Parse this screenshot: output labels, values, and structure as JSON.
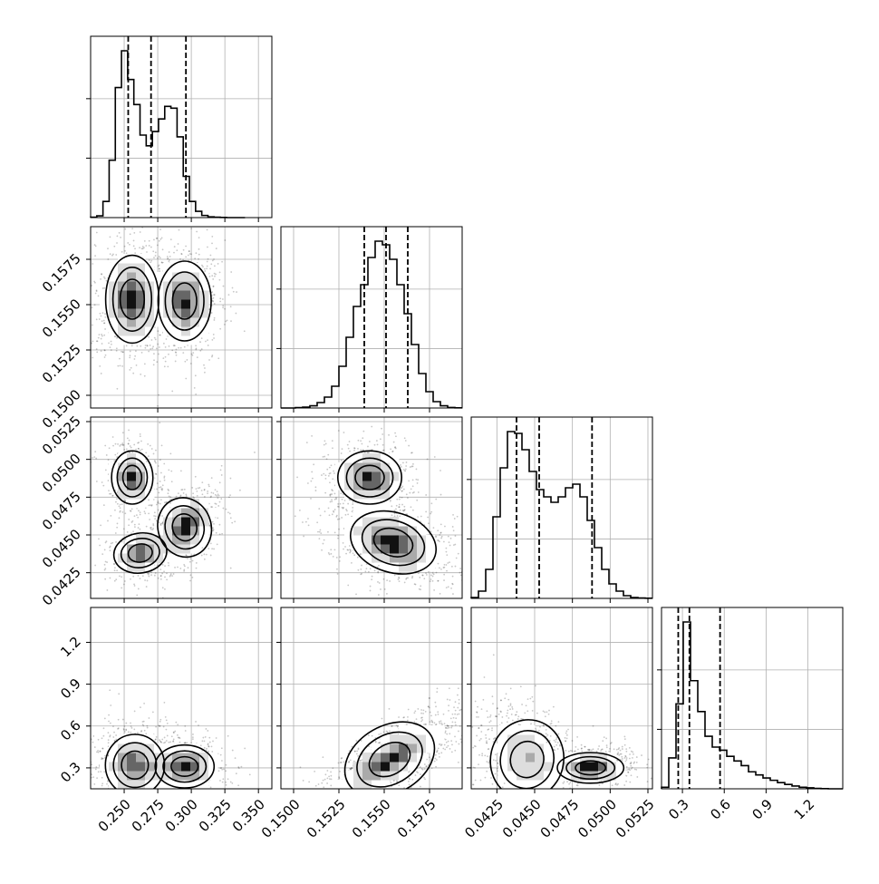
{
  "chart_data": {
    "type": "corner",
    "description_of_params": "4 parameters, 1D marginal histograms on diagonal, 2D density/contours below",
    "grid": true,
    "line_color": "#000000",
    "point_color": "#000000",
    "density_colors": [
      "#ffffff",
      "#dddddd",
      "#aaaaaa",
      "#666666",
      "#111111"
    ],
    "params": [
      {
        "range": [
          0.225,
          0.36
        ],
        "ticks": [
          0.25,
          0.275,
          0.3,
          0.325,
          0.35
        ],
        "tick_labels": [
          "0.250",
          "0.275",
          "0.300",
          "0.325",
          "0.350"
        ],
        "quantiles": [
          0.253,
          0.27,
          0.296
        ],
        "modes": [
          {
            "mean": 0.255,
            "sd": 0.011,
            "weight": 0.55
          },
          {
            "mean": 0.295,
            "sd": 0.01,
            "weight": 0.45
          }
        ],
        "hist": {
          "bins": [
            0.225,
            0.2296,
            0.2342,
            0.2388,
            0.2434,
            0.248,
            0.2526,
            0.2572,
            0.2618,
            0.2664,
            0.271,
            0.2756,
            0.2802,
            0.2848,
            0.2894,
            0.294,
            0.2986,
            0.3032,
            0.3078,
            0.3124,
            0.317,
            0.3216,
            0.3262,
            0.3308,
            0.3354,
            0.34
          ],
          "counts": [
            2,
            10,
            90,
            320,
            725,
            930,
            770,
            630,
            460,
            400,
            480,
            550,
            620,
            610,
            450,
            230,
            90,
            35,
            12,
            4,
            2,
            1,
            0,
            0,
            0
          ]
        }
      },
      {
        "range": [
          0.1493,
          0.1593
        ],
        "ticks": [
          0.15,
          0.1525,
          0.155,
          0.1575
        ],
        "tick_labels": [
          "0.1500",
          "0.1525",
          "0.1550",
          "0.1575"
        ],
        "quantiles": [
          0.1539,
          0.1551,
          0.1563
        ],
        "modes": [
          {
            "mean": 0.1551,
            "sd": 0.0012,
            "weight": 1.0
          }
        ],
        "hist": {
          "bins": [
            0.1493,
            0.1497,
            0.1501,
            0.1505,
            0.1509,
            0.1513,
            0.1517,
            0.1521,
            0.1525,
            0.1529,
            0.1533,
            0.1537,
            0.1541,
            0.1545,
            0.1549,
            0.1553,
            0.1557,
            0.1561,
            0.1565,
            0.1569,
            0.1573,
            0.1577,
            0.1581,
            0.1585,
            0.1589,
            0.1593
          ],
          "counts": [
            0,
            0,
            2,
            5,
            12,
            30,
            60,
            120,
            230,
            390,
            560,
            680,
            830,
            920,
            900,
            820,
            680,
            520,
            350,
            190,
            90,
            35,
            12,
            3,
            1
          ]
        }
      },
      {
        "range": [
          0.0408,
          0.0528
        ],
        "ticks": [
          0.0425,
          0.045,
          0.0475,
          0.05,
          0.0525
        ],
        "tick_labels": [
          "0.0425",
          "0.0450",
          "0.0475",
          "0.0500",
          "0.0525"
        ],
        "quantiles": [
          0.0438,
          0.0453,
          0.0488
        ],
        "modes": [
          {
            "mean": 0.0443,
            "sd": 0.0009,
            "weight": 0.55
          },
          {
            "mean": 0.0486,
            "sd": 0.001,
            "weight": 0.45
          }
        ],
        "hist": {
          "bins": [
            0.0408,
            0.04128,
            0.04176,
            0.04224,
            0.04272,
            0.0432,
            0.04368,
            0.04416,
            0.04464,
            0.04512,
            0.0456,
            0.04608,
            0.04656,
            0.04704,
            0.04752,
            0.048,
            0.04848,
            0.04896,
            0.04944,
            0.04992,
            0.0504,
            0.05088,
            0.05136,
            0.05184,
            0.05232,
            0.0528
          ],
          "counts": [
            5,
            40,
            160,
            450,
            720,
            920,
            910,
            820,
            700,
            600,
            560,
            530,
            560,
            610,
            630,
            560,
            430,
            280,
            160,
            80,
            40,
            15,
            5,
            2,
            1
          ]
        }
      },
      {
        "range": [
          0.15,
          1.45
        ],
        "ticks": [
          0.3,
          0.6,
          0.9,
          1.2
        ],
        "tick_labels": [
          "0.3",
          "0.6",
          "0.9",
          "1.2"
        ],
        "quantiles": [
          0.27,
          0.35,
          0.57
        ],
        "modes": [
          {
            "mean": 0.3,
            "sd": 0.08,
            "weight": 0.7
          },
          {
            "mean": 0.55,
            "sd": 0.18,
            "weight": 0.3
          }
        ],
        "hist": {
          "bins": [
            0.15,
            0.202,
            0.254,
            0.306,
            0.358,
            0.41,
            0.462,
            0.514,
            0.566,
            0.618,
            0.67,
            0.722,
            0.774,
            0.826,
            0.878,
            0.93,
            0.982,
            1.034,
            1.086,
            1.138,
            1.19,
            1.242,
            1.294,
            1.346,
            1.398,
            1.45
          ],
          "counts": [
            10,
            200,
            550,
            1080,
            700,
            500,
            340,
            270,
            250,
            210,
            180,
            150,
            110,
            90,
            70,
            55,
            40,
            28,
            18,
            10,
            6,
            3,
            1,
            0,
            0
          ]
        }
      }
    ],
    "pairs_2d": [
      {
        "row": 1,
        "col": 0,
        "clusters": [
          {
            "mx": 0.256,
            "my": 0.1553,
            "sx": 0.009,
            "sy": 0.0011,
            "rho": 0.0,
            "w": 0.55
          },
          {
            "mx": 0.295,
            "my": 0.1552,
            "sx": 0.009,
            "sy": 0.001,
            "rho": 0.0,
            "w": 0.45
          }
        ]
      },
      {
        "row": 2,
        "col": 0,
        "clusters": [
          {
            "mx": 0.256,
            "my": 0.0488,
            "sx": 0.007,
            "sy": 0.0008,
            "rho": 0.0,
            "w": 0.3
          },
          {
            "mx": 0.262,
            "my": 0.0438,
            "sx": 0.009,
            "sy": 0.0006,
            "rho": 0.2,
            "w": 0.25
          },
          {
            "mx": 0.295,
            "my": 0.0455,
            "sx": 0.009,
            "sy": 0.0009,
            "rho": 0.4,
            "w": 0.45
          }
        ]
      },
      {
        "row": 2,
        "col": 1,
        "clusters": [
          {
            "mx": 0.1542,
            "my": 0.0488,
            "sx": 0.0008,
            "sy": 0.0008,
            "rho": 0.0,
            "w": 0.4
          },
          {
            "mx": 0.1555,
            "my": 0.0445,
            "sx": 0.0011,
            "sy": 0.0009,
            "rho": -0.4,
            "w": 0.6
          }
        ]
      },
      {
        "row": 3,
        "col": 0,
        "clusters": [
          {
            "mx": 0.258,
            "my": 0.32,
            "sx": 0.01,
            "sy": 0.1,
            "rho": 0.0,
            "w": 0.55
          },
          {
            "mx": 0.295,
            "my": 0.31,
            "sx": 0.01,
            "sy": 0.07,
            "rho": 0.0,
            "w": 0.45
          }
        ]
      },
      {
        "row": 3,
        "col": 1,
        "clusters": [
          {
            "mx": 0.1553,
            "my": 0.36,
            "sx": 0.0012,
            "sy": 0.11,
            "rho": 0.75,
            "w": 1.0
          }
        ]
      },
      {
        "row": 3,
        "col": 2,
        "clusters": [
          {
            "mx": 0.0445,
            "my": 0.36,
            "sx": 0.0011,
            "sy": 0.13,
            "rho": -0.3,
            "w": 0.55
          },
          {
            "mx": 0.0487,
            "my": 0.3,
            "sx": 0.001,
            "sy": 0.05,
            "rho": 0.0,
            "w": 0.45
          }
        ]
      }
    ]
  }
}
